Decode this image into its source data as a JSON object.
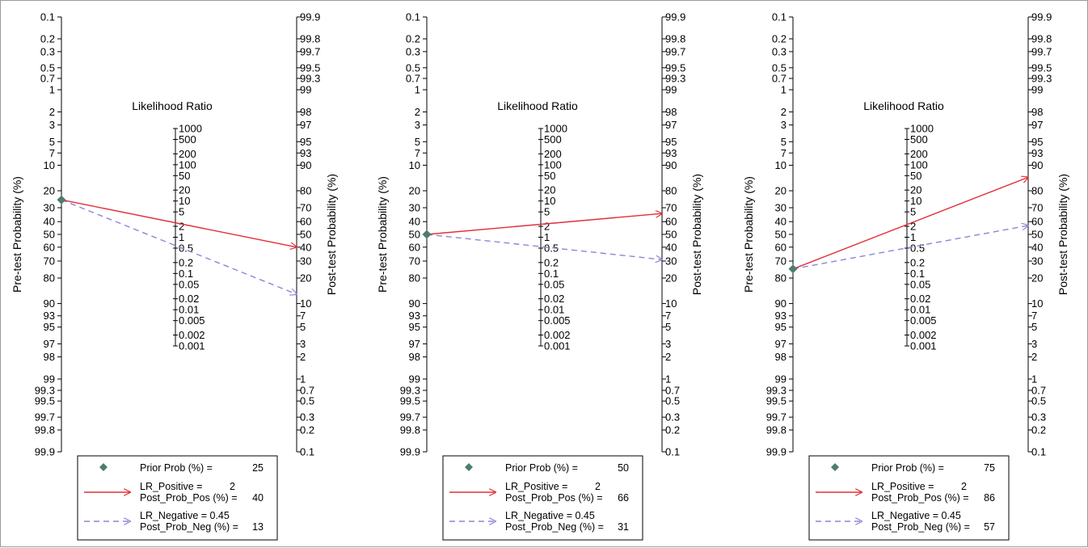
{
  "chart_data": [
    {
      "type": "fagan_nomogram",
      "lr_title": "Likelihood Ratio",
      "left_axis_label": "Pre-test Probability (%)",
      "right_axis_label": "Post-test Probability (%)",
      "left_ticks": [
        "0.1",
        "0.2",
        "0.3",
        "0.5",
        "0.7",
        "1",
        "2",
        "3",
        "5",
        "7",
        "10",
        "20",
        "30",
        "40",
        "50",
        "60",
        "70",
        "80",
        "90",
        "93",
        "95",
        "97",
        "98",
        "99",
        "99.3",
        "99.5",
        "99.7",
        "99.8",
        "99.9"
      ],
      "right_ticks": [
        "99.9",
        "99.8",
        "99.7",
        "99.5",
        "99.3",
        "99",
        "98",
        "97",
        "95",
        "93",
        "90",
        "80",
        "70",
        "60",
        "50",
        "40",
        "30",
        "20",
        "10",
        "7",
        "5",
        "3",
        "2",
        "1",
        "0.7",
        "0.5",
        "0.3",
        "0.2",
        "0.1"
      ],
      "lr_ticks": [
        "1000",
        "500",
        "200",
        "100",
        "50",
        "20",
        "10",
        "5",
        "2",
        "1",
        "0.5",
        "0.2",
        "0.1",
        "0.05",
        "0.02",
        "0.01",
        "0.005",
        "0.002",
        "0.001"
      ],
      "prior_prob": 25,
      "lr_positive": 2,
      "post_prob_pos": 40,
      "lr_negative": 0.45,
      "post_prob_neg": 13,
      "legend": {
        "prior_label": "Prior Prob (%) =",
        "prior_value": "25",
        "lrpos_label": "LR_Positive =",
        "lrpos_value": "2",
        "postpos_label": "Post_Prob_Pos (%) =",
        "postpos_value": "40",
        "lrneg_label": "LR_Negative = 0.45",
        "postneg_label": "Post_Prob_Neg (%) =",
        "postneg_value": "13"
      }
    },
    {
      "type": "fagan_nomogram",
      "lr_title": "Likelihood Ratio",
      "left_axis_label": "Pre-test Probability (%)",
      "right_axis_label": "Post-test Probability (%)",
      "left_ticks": [
        "0.1",
        "0.2",
        "0.3",
        "0.5",
        "0.7",
        "1",
        "2",
        "3",
        "5",
        "7",
        "10",
        "20",
        "30",
        "40",
        "50",
        "60",
        "70",
        "80",
        "90",
        "93",
        "95",
        "97",
        "98",
        "99",
        "99.3",
        "99.5",
        "99.7",
        "99.8",
        "99.9"
      ],
      "right_ticks": [
        "99.9",
        "99.8",
        "99.7",
        "99.5",
        "99.3",
        "99",
        "98",
        "97",
        "95",
        "93",
        "90",
        "80",
        "70",
        "60",
        "50",
        "40",
        "30",
        "20",
        "10",
        "7",
        "5",
        "3",
        "2",
        "1",
        "0.7",
        "0.5",
        "0.3",
        "0.2",
        "0.1"
      ],
      "lr_ticks": [
        "1000",
        "500",
        "200",
        "100",
        "50",
        "20",
        "10",
        "5",
        "2",
        "1",
        "0.5",
        "0.2",
        "0.1",
        "0.05",
        "0.02",
        "0.01",
        "0.005",
        "0.002",
        "0.001"
      ],
      "prior_prob": 50,
      "lr_positive": 2,
      "post_prob_pos": 66,
      "lr_negative": 0.45,
      "post_prob_neg": 31,
      "legend": {
        "prior_label": "Prior Prob (%) =",
        "prior_value": "50",
        "lrpos_label": "LR_Positive =",
        "lrpos_value": "2",
        "postpos_label": "Post_Prob_Pos (%) =",
        "postpos_value": "66",
        "lrneg_label": "LR_Negative = 0.45",
        "postneg_label": "Post_Prob_Neg (%) =",
        "postneg_value": "31"
      }
    },
    {
      "type": "fagan_nomogram",
      "lr_title": "Likelihood Ratio",
      "left_axis_label": "Pre-test Probability (%)",
      "right_axis_label": "Post-test Probability (%)",
      "left_ticks": [
        "0.1",
        "0.2",
        "0.3",
        "0.5",
        "0.7",
        "1",
        "2",
        "3",
        "5",
        "7",
        "10",
        "20",
        "30",
        "40",
        "50",
        "60",
        "70",
        "80",
        "90",
        "93",
        "95",
        "97",
        "98",
        "99",
        "99.3",
        "99.5",
        "99.7",
        "99.8",
        "99.9"
      ],
      "right_ticks": [
        "99.9",
        "99.8",
        "99.7",
        "99.5",
        "99.3",
        "99",
        "98",
        "97",
        "95",
        "93",
        "90",
        "80",
        "70",
        "60",
        "50",
        "40",
        "30",
        "20",
        "10",
        "7",
        "5",
        "3",
        "2",
        "1",
        "0.7",
        "0.5",
        "0.3",
        "0.2",
        "0.1"
      ],
      "lr_ticks": [
        "1000",
        "500",
        "200",
        "100",
        "50",
        "20",
        "10",
        "5",
        "2",
        "1",
        "0.5",
        "0.2",
        "0.1",
        "0.05",
        "0.02",
        "0.01",
        "0.005",
        "0.002",
        "0.001"
      ],
      "prior_prob": 75,
      "lr_positive": 2,
      "post_prob_pos": 86,
      "lr_negative": 0.45,
      "post_prob_neg": 57,
      "legend": {
        "prior_label": "Prior Prob (%) =",
        "prior_value": "75",
        "lrpos_label": "LR_Positive =",
        "lrpos_value": "2",
        "postpos_label": "Post_Prob_Pos (%) =",
        "postpos_value": "86",
        "lrneg_label": "LR_Negative = 0.45",
        "postneg_label": "Post_Prob_Neg (%) =",
        "postneg_value": "57"
      }
    }
  ],
  "colors": {
    "positive_line": "#e0303a",
    "negative_line": "#8e84d6",
    "prior_marker": "#4f7c6e",
    "axis": "#000000",
    "frame": "#9a9a9a"
  }
}
